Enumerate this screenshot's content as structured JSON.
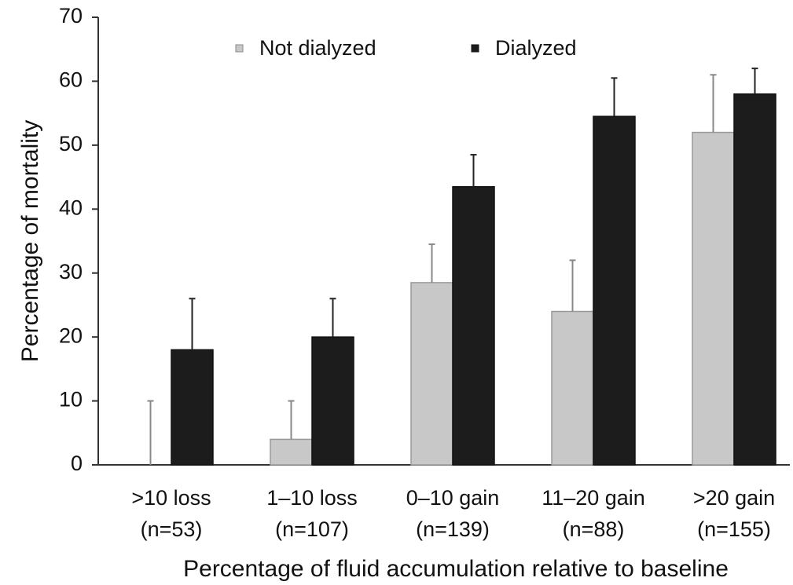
{
  "chart_data": {
    "type": "bar",
    "y_label": "Percentage of mortality",
    "x_label": "Percentage of fluid accumulation relative to baseline",
    "categories": [
      ">10 loss",
      "1–10 loss",
      "0–10 gain",
      "11–20 gain",
      ">20 gain"
    ],
    "sample_sizes": [
      "(n=53)",
      "(n=107)",
      "(n=139)",
      "(n=88)",
      "(n=155)"
    ],
    "series": [
      {
        "name": "Not dialyzed",
        "color": "#c8c8c8",
        "values": [
          0,
          4,
          28.5,
          24,
          52
        ],
        "errors": [
          10,
          6,
          6,
          8,
          9
        ]
      },
      {
        "name": "Dialyzed",
        "color": "#1c1c1c",
        "values": [
          18,
          20,
          43.5,
          54.5,
          58
        ],
        "errors": [
          8,
          6,
          5,
          6,
          4
        ]
      }
    ],
    "ylim": [
      0,
      70
    ],
    "yticks": [
      0,
      10,
      20,
      30,
      40,
      50,
      60,
      70
    ],
    "grid": false
  }
}
